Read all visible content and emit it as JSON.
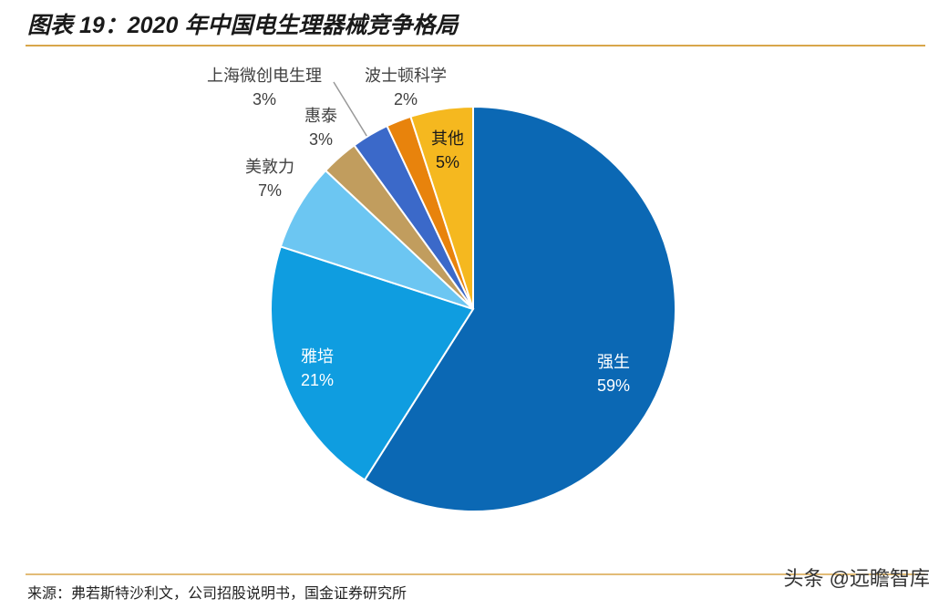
{
  "chart_data": {
    "type": "pie",
    "title": "图表 19：2020 年中国电生理器械竞争格局",
    "categories": [
      "强生",
      "雅培",
      "美敦力",
      "惠泰",
      "上海微创电生理",
      "波士顿科学",
      "其他"
    ],
    "values": [
      59,
      21,
      7,
      3,
      3,
      2,
      5
    ],
    "value_labels": [
      "59%",
      "21%",
      "7%",
      "3%",
      "3%",
      "2%",
      "5%"
    ],
    "colors": [
      "#0b68b4",
      "#0f9de0",
      "#6cc6f2",
      "#c19d5e",
      "#3b69c9",
      "#e8830c",
      "#f5b81f"
    ],
    "source": "来源：弗若斯特沙利文，公司招股说明书，国金证券研究所",
    "watermark": "头条 @远瞻智库"
  }
}
